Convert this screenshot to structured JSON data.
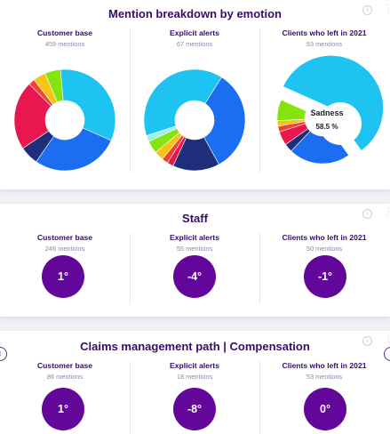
{
  "colors": {
    "title": "#3a0a6e",
    "score_bg": "#63079b",
    "sadness": "#1ec3f2",
    "emotion_palette": [
      "#1ec3f2",
      "#1b6df2",
      "#1f2e7a",
      "#e8184f",
      "#f04235",
      "#f5c416",
      "#86e40e",
      "#9ef0e8"
    ]
  },
  "card1": {
    "title": "Mention breakdown by emotion",
    "columns": [
      {
        "title": "Customer base",
        "subtitle": "459 mentions"
      },
      {
        "title": "Explicit alerts",
        "subtitle": "67 mentions"
      },
      {
        "title": "Clients who left in 2021",
        "subtitle": "53 mentions"
      }
    ],
    "tooltip": {
      "label": "Sadness",
      "value": "58.5 %"
    }
  },
  "card2": {
    "title": "Staff",
    "columns": [
      {
        "title": "Customer base",
        "subtitle": "246 mentions",
        "score": "1°"
      },
      {
        "title": "Explicit alerts",
        "subtitle": "55 mentions",
        "score": "-4°"
      },
      {
        "title": "Clients who left in 2021",
        "subtitle": "50 mentions",
        "score": "-1°"
      }
    ]
  },
  "card3": {
    "title": "Claims management path | Compensation",
    "columns": [
      {
        "title": "Customer base",
        "subtitle": "86 mentions",
        "score": "1°"
      },
      {
        "title": "Explicit alerts",
        "subtitle": "18 mentions",
        "score": "-8°"
      },
      {
        "title": "Clients who left in 2021",
        "subtitle": "53 mentions",
        "score": "0°"
      }
    ]
  },
  "chart_data": [
    {
      "type": "pie",
      "segments": [
        {
          "color": "#1ec3f2",
          "value": 33
        },
        {
          "color": "#1b6df2",
          "value": 28
        },
        {
          "color": "#1f2e7a",
          "value": 6
        },
        {
          "color": "#e8184f",
          "value": 22
        },
        {
          "color": "#f04235",
          "value": 2
        },
        {
          "color": "#f5c416",
          "value": 4
        },
        {
          "color": "#86e40e",
          "value": 5
        }
      ]
    },
    {
      "type": "pie",
      "segments": [
        {
          "color": "#1ec3f2",
          "value": 39
        },
        {
          "color": "#1b6df2",
          "value": 33
        },
        {
          "color": "#1f2e7a",
          "value": 15
        },
        {
          "color": "#e8184f",
          "value": 2
        },
        {
          "color": "#f04235",
          "value": 2
        },
        {
          "color": "#f5c416",
          "value": 3
        },
        {
          "color": "#86e40e",
          "value": 4
        },
        {
          "color": "#9ef0e8",
          "value": 2
        }
      ]
    },
    {
      "type": "pie",
      "segments": [
        {
          "color": "#1ec3f2",
          "value": 58.5
        },
        {
          "color": "#1b6df2",
          "value": 22
        },
        {
          "color": "#1f2e7a",
          "value": 3
        },
        {
          "color": "#e8184f",
          "value": 5
        },
        {
          "color": "#f04235",
          "value": 2
        },
        {
          "color": "#f5c416",
          "value": 2
        },
        {
          "color": "#86e40e",
          "value": 7.5
        }
      ]
    }
  ]
}
